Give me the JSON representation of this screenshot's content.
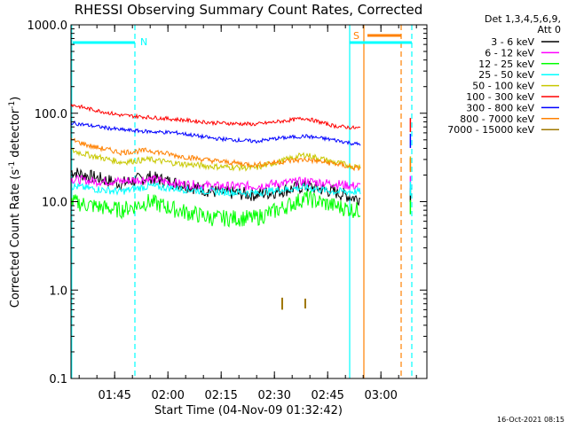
{
  "chart_data": {
    "type": "line",
    "title": "RHESSI Observing Summary Count Rates, Corrected",
    "xlabel": "Start Time (04-Nov-09 01:32:42)",
    "ylabel_main": "Corrected Count Rate (s",
    "ylabel_sup1": "-1",
    "ylabel_mid": " detector",
    "ylabel_sup2": "-1",
    "ylabel_end": ")",
    "y_scale": "log",
    "ylim": [
      0.1,
      1000
    ],
    "y_ticks": [
      {
        "value": 0.1,
        "label": "0.1"
      },
      {
        "value": 1,
        "label": "1.0"
      },
      {
        "value": 10,
        "label": "10.0"
      },
      {
        "value": 100,
        "label": "100.0"
      },
      {
        "value": 1000,
        "label": "1000.0"
      }
    ],
    "x_range_min": [
      0,
      160
    ],
    "x_ticks": [
      {
        "t": 12.3,
        "label": "01:45"
      },
      {
        "t": 27.3,
        "label": "02:00"
      },
      {
        "t": 42.3,
        "label": "02:15"
      },
      {
        "t": 57.3,
        "label": "02:30"
      },
      {
        "t": 72.3,
        "label": "02:45"
      },
      {
        "t": 87.3,
        "label": "03:00"
      }
    ],
    "legend_header": [
      "Det 1,3,4,5,6,9,",
      "Att 0"
    ],
    "legend_position": "top-right",
    "series": [
      {
        "name": "3 - 6 keV",
        "color": "#000000",
        "values": [
          [
            0,
            22
          ],
          [
            6,
            19
          ],
          [
            14,
            16
          ],
          [
            22,
            19
          ],
          [
            30,
            16
          ],
          [
            40,
            13
          ],
          [
            52,
            12
          ],
          [
            58,
            13
          ],
          [
            66,
            15
          ],
          [
            74,
            13
          ],
          [
            80,
            11
          ],
          [
            81.5,
            11
          ]
        ]
      },
      {
        "name": "6 - 12 keV",
        "color": "#ff00ff",
        "values": [
          [
            0,
            18
          ],
          [
            6,
            17
          ],
          [
            14,
            17
          ],
          [
            22,
            18
          ],
          [
            30,
            16
          ],
          [
            40,
            15
          ],
          [
            52,
            15
          ],
          [
            58,
            16
          ],
          [
            66,
            17
          ],
          [
            74,
            16
          ],
          [
            80,
            15
          ],
          [
            81.5,
            15
          ]
        ]
      },
      {
        "name": "12 - 25 keV",
        "color": "#00ff00",
        "values": [
          [
            0,
            10
          ],
          [
            6,
            9
          ],
          [
            14,
            8
          ],
          [
            22,
            10
          ],
          [
            30,
            8
          ],
          [
            40,
            6.5
          ],
          [
            52,
            6.5
          ],
          [
            58,
            8
          ],
          [
            66,
            11
          ],
          [
            74,
            9
          ],
          [
            80,
            8
          ],
          [
            81.5,
            8
          ]
        ]
      },
      {
        "name": "25 - 50 keV",
        "color": "#00ffff",
        "values": [
          [
            0,
            15
          ],
          [
            6,
            14
          ],
          [
            14,
            13
          ],
          [
            22,
            15
          ],
          [
            30,
            14
          ],
          [
            40,
            13
          ],
          [
            52,
            12.5
          ],
          [
            58,
            13.5
          ],
          [
            66,
            14.5
          ],
          [
            74,
            13
          ],
          [
            80,
            13
          ],
          [
            81.5,
            13
          ]
        ]
      },
      {
        "name": "50 - 100 keV",
        "color": "#c8c800",
        "values": [
          [
            0,
            38
          ],
          [
            6,
            33
          ],
          [
            14,
            28
          ],
          [
            22,
            30
          ],
          [
            30,
            27
          ],
          [
            40,
            25
          ],
          [
            52,
            24
          ],
          [
            58,
            28
          ],
          [
            66,
            34
          ],
          [
            74,
            28
          ],
          [
            80,
            25
          ],
          [
            81.5,
            25
          ]
        ]
      },
      {
        "name": "100 - 300 keV",
        "color": "#ff0000",
        "values": [
          [
            0,
            125
          ],
          [
            6,
            110
          ],
          [
            14,
            95
          ],
          [
            22,
            90
          ],
          [
            30,
            85
          ],
          [
            40,
            78
          ],
          [
            52,
            75
          ],
          [
            58,
            80
          ],
          [
            66,
            88
          ],
          [
            74,
            72
          ],
          [
            80,
            68
          ],
          [
            81.5,
            68
          ]
        ]
      },
      {
        "name": "300 - 800 keV",
        "color": "#0000ff",
        "values": [
          [
            0,
            78
          ],
          [
            6,
            72
          ],
          [
            14,
            65
          ],
          [
            22,
            62
          ],
          [
            30,
            60
          ],
          [
            40,
            52
          ],
          [
            52,
            48
          ],
          [
            58,
            52
          ],
          [
            66,
            55
          ],
          [
            74,
            50
          ],
          [
            80,
            45
          ],
          [
            81.5,
            45
          ]
        ]
      },
      {
        "name": "800 - 7000 keV",
        "color": "#ff8000",
        "values": [
          [
            0,
            50
          ],
          [
            6,
            42
          ],
          [
            14,
            36
          ],
          [
            22,
            38
          ],
          [
            30,
            33
          ],
          [
            40,
            29
          ],
          [
            52,
            26
          ],
          [
            58,
            28
          ],
          [
            66,
            30
          ],
          [
            74,
            27
          ],
          [
            80,
            24
          ],
          [
            81.5,
            24
          ]
        ]
      },
      {
        "name": "7000 - 15000 keV",
        "color": "#a07800",
        "values": [
          [
            59.5,
            0.6
          ],
          [
            59.5,
            0.82
          ],
          [
            66,
            0.62
          ],
          [
            66,
            0.8
          ]
        ]
      }
    ],
    "annotations": [
      {
        "text": "N",
        "color": "#00ffff"
      },
      {
        "text": "S",
        "color": "#ff8000"
      }
    ],
    "footer_timestamp": "16-Oct-2021 08:15"
  }
}
